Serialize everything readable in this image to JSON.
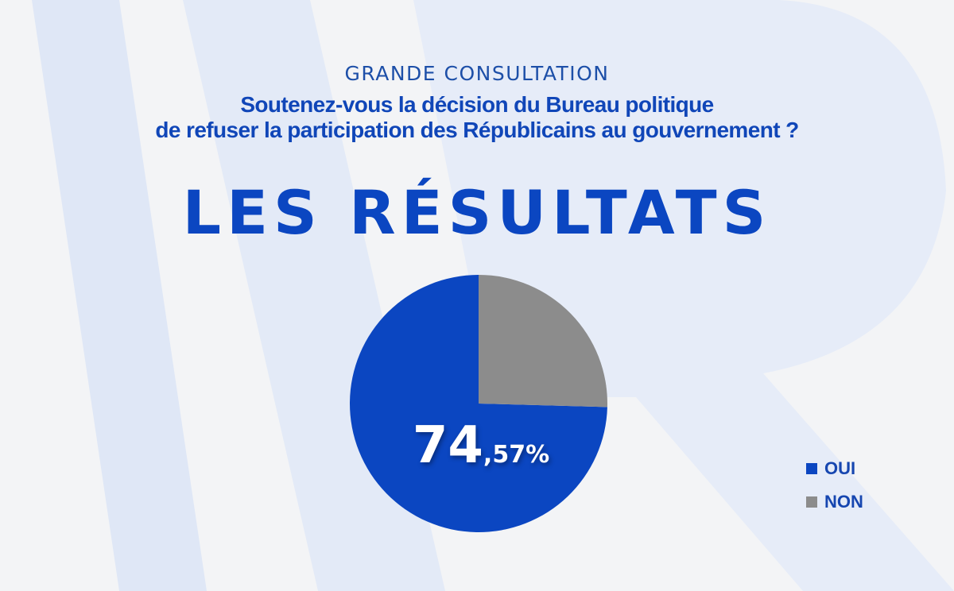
{
  "header": {
    "overline": "GRANDE CONSULTATION",
    "question_line1": "Soutenez-vous la décision du Bureau politique",
    "question_line2": "de refuser la participation des Républicains au gouvernement ?",
    "results_title": "LES RÉSULTATS"
  },
  "colors": {
    "primary_blue": "#0b46c1",
    "grey": "#8c8c8c",
    "background": "#f3f4f6",
    "logo_watermark": "#dfe7f6"
  },
  "chart_data": {
    "type": "pie",
    "series": [
      {
        "name": "OUI",
        "value": 74.57,
        "color": "#0b46c1"
      },
      {
        "name": "NON",
        "value": 25.43,
        "color": "#8c8c8c"
      }
    ],
    "data_label": {
      "integer": "74",
      "decimal": ",57%"
    },
    "legend_position": "bottom-right"
  }
}
